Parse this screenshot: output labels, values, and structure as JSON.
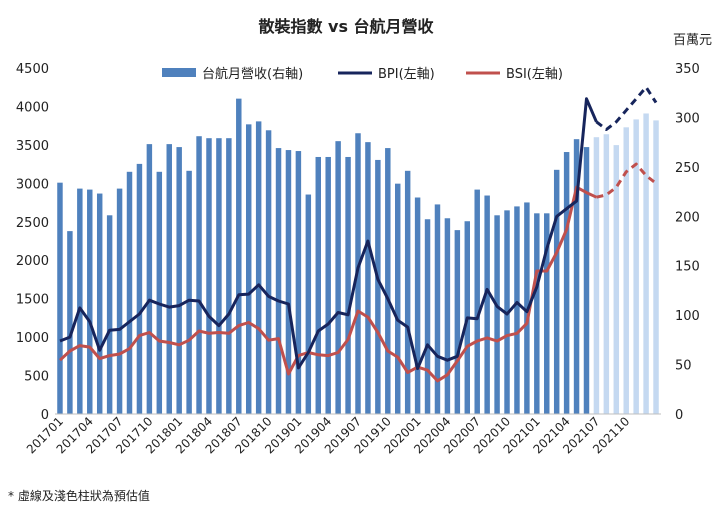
{
  "chart_data": {
    "type": "bar+line",
    "title": "散裝指數 vs 台航月營收",
    "right_axis_unit": "百萬元",
    "footnote": "* 虛線及淺色柱狀為預估值",
    "left_axis": {
      "ylim": [
        0,
        4500
      ],
      "ticks": [
        "0",
        "500",
        "1000",
        "1500",
        "2000",
        "2500",
        "3000",
        "3500",
        "4000",
        "4500"
      ]
    },
    "right_axis": {
      "ylim": [
        0,
        350
      ],
      "ticks": [
        "0",
        "50",
        "100",
        "150",
        "200",
        "250",
        "300",
        "350"
      ]
    },
    "x_tick_labels": [
      "201701",
      "201704",
      "201707",
      "201710",
      "201801",
      "201804",
      "201807",
      "201810",
      "201901",
      "201904",
      "201907",
      "201910",
      "202001",
      "202004",
      "202007",
      "202010",
      "202101",
      "202104",
      "202107",
      "202110"
    ],
    "legend": [
      {
        "name": "台航月營收(右軸)",
        "color": "#4f81bd",
        "kind": "bar"
      },
      {
        "name": "BPI(左軸)",
        "color": "#17255c",
        "kind": "line"
      },
      {
        "name": "BSI(左軸)",
        "color": "#c0504d",
        "kind": "line"
      }
    ],
    "forecast_start_index": 54,
    "colors": {
      "bar": "#4f81bd",
      "bar_forecast": "#c5d9f1",
      "bpi": "#17255c",
      "bsi": "#c0504d",
      "axis": "#bfbfbf"
    },
    "series": [
      {
        "name": "台航月營收(右軸)",
        "axis": "right",
        "values": [
          234,
          185,
          228,
          227,
          223,
          201,
          228,
          245,
          253,
          273,
          245,
          273,
          270,
          246,
          281,
          279,
          279,
          279,
          319,
          293,
          296,
          287,
          269,
          267,
          266,
          222,
          260,
          260,
          276,
          260,
          284,
          275,
          257,
          269,
          233,
          246,
          219,
          197,
          212,
          198,
          186,
          195,
          227,
          221,
          201,
          206,
          210,
          214,
          203,
          203,
          247,
          265,
          278,
          270,
          280,
          283,
          272,
          290,
          298,
          304,
          297
        ]
      },
      {
        "name": "BPI(左軸)",
        "axis": "left",
        "values": [
          950,
          1000,
          1380,
          1200,
          830,
          1090,
          1100,
          1200,
          1300,
          1480,
          1430,
          1390,
          1410,
          1480,
          1470,
          1270,
          1150,
          1300,
          1550,
          1560,
          1680,
          1530,
          1470,
          1430,
          600,
          800,
          1080,
          1170,
          1320,
          1290,
          1900,
          2250,
          1750,
          1500,
          1220,
          1130,
          590,
          900,
          750,
          700,
          750,
          1250,
          1240,
          1620,
          1400,
          1300,
          1450,
          1330,
          1650,
          2150,
          2570,
          2670,
          2770,
          4100,
          3800,
          3700,
          3800,
          3950,
          4100,
          4250,
          4050
        ]
      },
      {
        "name": "BSI(左軸)",
        "axis": "left",
        "values": [
          700,
          820,
          890,
          870,
          720,
          760,
          780,
          850,
          1020,
          1060,
          950,
          930,
          900,
          960,
          1080,
          1050,
          1060,
          1050,
          1150,
          1190,
          1110,
          960,
          980,
          520,
          760,
          800,
          770,
          760,
          800,
          970,
          1340,
          1260,
          1060,
          820,
          740,
          540,
          610,
          570,
          430,
          510,
          690,
          880,
          950,
          990,
          950,
          1020,
          1050,
          1180,
          1860,
          1860,
          2100,
          2400,
          2950,
          2880,
          2820,
          2850,
          2950,
          3150,
          3250,
          3100,
          3000
        ]
      }
    ]
  }
}
